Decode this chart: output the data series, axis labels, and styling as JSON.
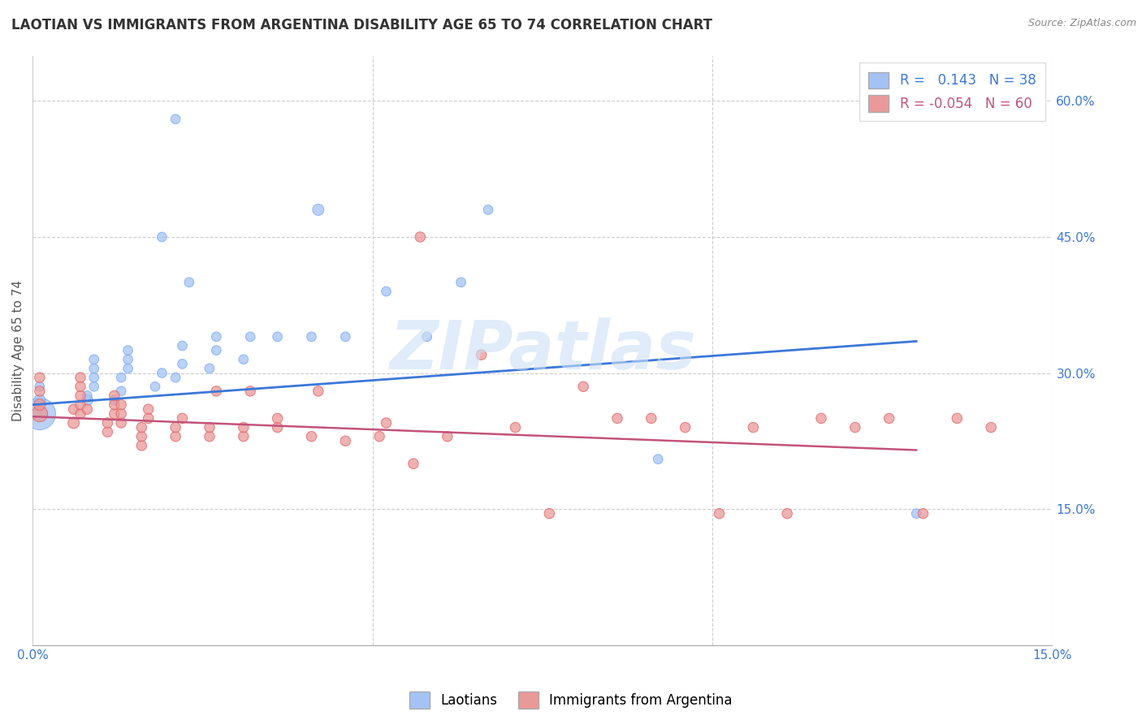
{
  "title": "LAOTIAN VS IMMIGRANTS FROM ARGENTINA DISABILITY AGE 65 TO 74 CORRELATION CHART",
  "source": "Source: ZipAtlas.com",
  "ylabel": "Disability Age 65 to 74",
  "xlim": [
    0.0,
    0.15
  ],
  "ylim": [
    0.0,
    0.65
  ],
  "xticks": [
    0.0,
    0.05,
    0.1,
    0.15
  ],
  "xticklabels": [
    "0.0%",
    "",
    "",
    "15.0%"
  ],
  "yticks": [
    0.15,
    0.3,
    0.45,
    0.6
  ],
  "yticklabels": [
    "15.0%",
    "30.0%",
    "45.0%",
    "60.0%"
  ],
  "blue_R": 0.143,
  "blue_N": 38,
  "pink_R": -0.054,
  "pink_N": 60,
  "blue_color": "#a4c2f4",
  "pink_color": "#ea9999",
  "blue_line_color": "#3c78d8",
  "pink_line_color": "#c2537a",
  "watermark": "ZIPatlas",
  "legend_labels": [
    "Laotians",
    "Immigrants from Argentina"
  ],
  "blue_scatter_x": [
    0.001,
    0.001,
    0.001,
    0.008,
    0.008,
    0.009,
    0.009,
    0.009,
    0.009,
    0.012,
    0.013,
    0.013,
    0.014,
    0.014,
    0.014,
    0.018,
    0.019,
    0.019,
    0.021,
    0.022,
    0.022,
    0.023,
    0.026,
    0.027,
    0.027,
    0.031,
    0.032,
    0.036,
    0.041,
    0.042,
    0.046,
    0.052,
    0.058,
    0.063,
    0.067,
    0.092,
    0.13,
    0.021
  ],
  "blue_scatter_y": [
    0.255,
    0.27,
    0.285,
    0.27,
    0.275,
    0.285,
    0.295,
    0.305,
    0.315,
    0.27,
    0.28,
    0.295,
    0.305,
    0.315,
    0.325,
    0.285,
    0.3,
    0.45,
    0.295,
    0.31,
    0.33,
    0.4,
    0.305,
    0.325,
    0.34,
    0.315,
    0.34,
    0.34,
    0.34,
    0.48,
    0.34,
    0.39,
    0.34,
    0.4,
    0.48,
    0.205,
    0.145,
    0.58
  ],
  "blue_scatter_size": [
    800,
    100,
    70,
    100,
    70,
    70,
    70,
    70,
    70,
    70,
    70,
    70,
    70,
    70,
    70,
    70,
    70,
    70,
    70,
    70,
    70,
    70,
    70,
    70,
    70,
    70,
    70,
    70,
    70,
    100,
    70,
    70,
    70,
    70,
    70,
    70,
    70,
    70
  ],
  "pink_scatter_x": [
    0.001,
    0.001,
    0.001,
    0.001,
    0.006,
    0.006,
    0.007,
    0.007,
    0.007,
    0.007,
    0.007,
    0.008,
    0.011,
    0.011,
    0.012,
    0.012,
    0.012,
    0.013,
    0.013,
    0.013,
    0.016,
    0.016,
    0.016,
    0.017,
    0.017,
    0.021,
    0.021,
    0.022,
    0.026,
    0.026,
    0.027,
    0.031,
    0.031,
    0.032,
    0.036,
    0.036,
    0.041,
    0.042,
    0.046,
    0.051,
    0.052,
    0.056,
    0.057,
    0.061,
    0.066,
    0.071,
    0.076,
    0.081,
    0.086,
    0.091,
    0.096,
    0.101,
    0.106,
    0.111,
    0.116,
    0.121,
    0.126,
    0.131,
    0.136,
    0.141
  ],
  "pink_scatter_y": [
    0.255,
    0.265,
    0.28,
    0.295,
    0.245,
    0.26,
    0.255,
    0.265,
    0.275,
    0.285,
    0.295,
    0.26,
    0.235,
    0.245,
    0.255,
    0.265,
    0.275,
    0.245,
    0.255,
    0.265,
    0.22,
    0.23,
    0.24,
    0.25,
    0.26,
    0.23,
    0.24,
    0.25,
    0.23,
    0.24,
    0.28,
    0.23,
    0.24,
    0.28,
    0.24,
    0.25,
    0.23,
    0.28,
    0.225,
    0.23,
    0.245,
    0.2,
    0.45,
    0.23,
    0.32,
    0.24,
    0.145,
    0.285,
    0.25,
    0.25,
    0.24,
    0.145,
    0.24,
    0.145,
    0.25,
    0.24,
    0.25,
    0.145,
    0.25,
    0.24
  ],
  "pink_scatter_size": [
    200,
    100,
    80,
    80,
    100,
    80,
    80,
    80,
    80,
    80,
    80,
    80,
    80,
    80,
    80,
    80,
    80,
    80,
    80,
    80,
    80,
    80,
    80,
    80,
    80,
    80,
    80,
    80,
    80,
    80,
    80,
    80,
    80,
    80,
    80,
    80,
    80,
    80,
    80,
    80,
    80,
    80,
    80,
    80,
    80,
    80,
    80,
    80,
    80,
    80,
    80,
    80,
    80,
    80,
    80,
    80,
    80,
    80,
    80,
    80
  ]
}
